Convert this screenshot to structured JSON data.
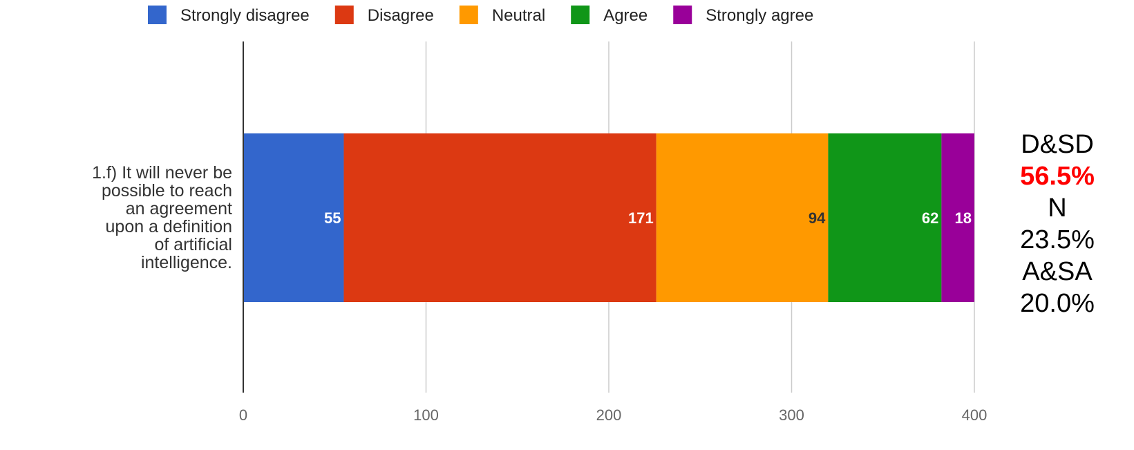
{
  "chart_data": {
    "type": "bar",
    "orientation": "horizontal",
    "stacked": true,
    "categories": [
      "1.f) It will never be possible to reach an agreement upon a definition of artificial intelligence."
    ],
    "category_lines": [
      "1.f) It will never be",
      "possible to reach",
      "an agreement",
      "upon a definition",
      "of artificial",
      "intelligence."
    ],
    "series": [
      {
        "name": "Strongly disagree",
        "values": [
          55
        ],
        "color": "#3366cc",
        "label_color": "#ffffff"
      },
      {
        "name": "Disagree",
        "values": [
          171
        ],
        "color": "#dc3912",
        "label_color": "#ffffff"
      },
      {
        "name": "Neutral",
        "values": [
          94
        ],
        "color": "#ff9900",
        "label_color": "#333333"
      },
      {
        "name": "Agree",
        "values": [
          62
        ],
        "color": "#109618",
        "label_color": "#ffffff"
      },
      {
        "name": "Strongly agree",
        "values": [
          18
        ],
        "color": "#990099",
        "label_color": "#ffffff"
      }
    ],
    "xlim": [
      0,
      400
    ],
    "xticks": [
      "0",
      "100",
      "200",
      "300",
      "400"
    ],
    "grid": true,
    "legend_position": "top",
    "title": "",
    "xlabel": "",
    "ylabel": ""
  },
  "side_panel": {
    "lines": [
      {
        "text": "D&SD",
        "color": "#000000",
        "bold": false
      },
      {
        "text": "56.5%",
        "color": "#ff0000",
        "bold": true
      },
      {
        "text": "N",
        "color": "#000000",
        "bold": false
      },
      {
        "text": "23.5%",
        "color": "#000000",
        "bold": false
      },
      {
        "text": "A&SA",
        "color": "#000000",
        "bold": false
      },
      {
        "text": "20.0%",
        "color": "#000000",
        "bold": false
      }
    ]
  }
}
